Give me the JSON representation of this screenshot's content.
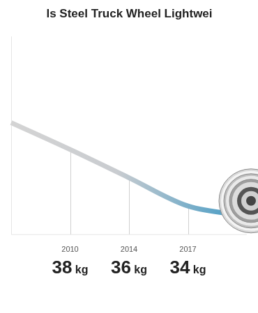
{
  "chart_data": {
    "type": "line",
    "title": "ls Steel Truck Wheel Lightwei",
    "categories": [
      null,
      "2010",
      "2014",
      "2017",
      null
    ],
    "values": [
      39.9,
      38,
      36,
      34,
      33.3
    ],
    "value_labels": [
      null,
      "38 kg",
      "36 kg",
      "34 kg",
      null
    ],
    "color": "#3d98c4",
    "ylim": [
      32,
      46
    ],
    "grid": false,
    "data_labels": true,
    "tick_labels": "x"
  }
}
